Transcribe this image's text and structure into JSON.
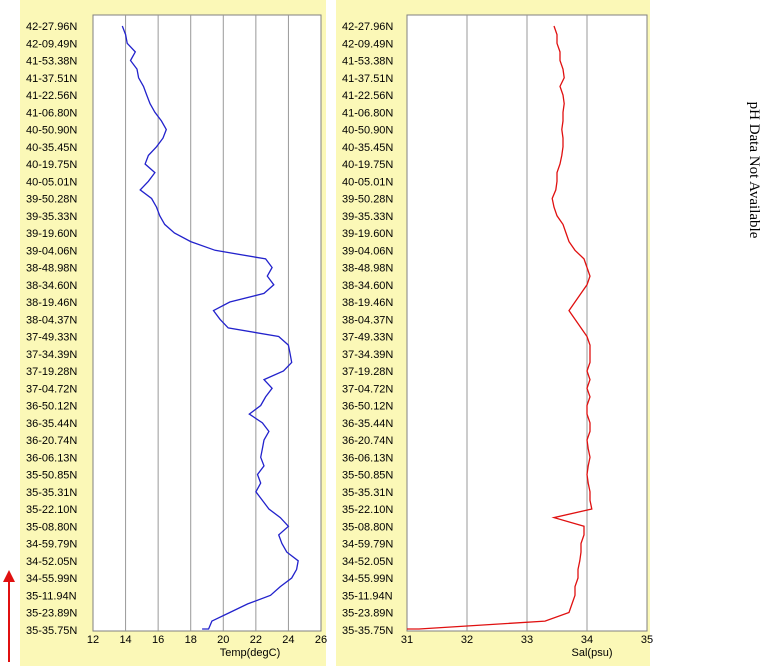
{
  "note": "pH Data Not Available",
  "colors": {
    "panel_bg": "#FBF8B7",
    "plot_bg": "#FFFFFF",
    "temp_line": "#2222CC",
    "sal_line": "#E01010",
    "grid": "#999999",
    "arrow": "#E01010"
  },
  "chart_data": [
    {
      "type": "line",
      "title": "",
      "xlabel": "Temp(degC)",
      "ylabel": "",
      "xlim": [
        12,
        26
      ],
      "xticks": [
        12,
        14,
        16,
        18,
        20,
        22,
        24,
        26
      ],
      "grid": true,
      "latitude_labels": [
        "42-27.96N",
        "42-09.49N",
        "41-53.38N",
        "41-37.51N",
        "41-22.56N",
        "41-06.80N",
        "40-50.90N",
        "40-35.45N",
        "40-19.75N",
        "40-05.01N",
        "39-50.28N",
        "39-35.33N",
        "39-19.60N",
        "39-04.06N",
        "38-48.98N",
        "38-34.60N",
        "38-19.46N",
        "38-04.37N",
        "37-49.33N",
        "37-34.39N",
        "37-19.28N",
        "37-04.72N",
        "36-50.12N",
        "36-35.44N",
        "36-20.74N",
        "36-06.13N",
        "35-50.85N",
        "35-35.31N",
        "35-22.10N",
        "35-08.80N",
        "34-59.79N",
        "34-52.05N",
        "34-55.99N",
        "35-11.94N",
        "35-23.89N",
        "35-35.75N"
      ],
      "series": [
        {
          "y": [
            0,
            0.5,
            1,
            1.5,
            2,
            2.5,
            3,
            3.5,
            4,
            4.5,
            5,
            5.5,
            6,
            6.5,
            7,
            7.5,
            8,
            8.5,
            9,
            9.5,
            10,
            10.5,
            11,
            11.5,
            12,
            12.5,
            13,
            13.5,
            14,
            14.5,
            15,
            15.5,
            16,
            16.5,
            17,
            17.5,
            18,
            18.5,
            19,
            19.5,
            20,
            20.5,
            21,
            21.5,
            22,
            22.5,
            23,
            23.5,
            24,
            24.5,
            25,
            25.5,
            26,
            26.5,
            27,
            27.5,
            28,
            28.5,
            29,
            29.5,
            30,
            30.5,
            31,
            31.5,
            32,
            32.5,
            33,
            33.5,
            34,
            34.5,
            35,
            35.5
          ],
          "x": [
            13.8,
            14.0,
            14.1,
            14.6,
            14.3,
            14.7,
            14.8,
            15.1,
            15.3,
            15.5,
            15.8,
            16.2,
            16.5,
            16.3,
            15.9,
            15.4,
            15.2,
            15.8,
            15.4,
            14.9,
            15.6,
            15.9,
            16.1,
            16.4,
            17.0,
            18.0,
            19.5,
            22.6,
            23.0,
            22.7,
            23.1,
            22.5,
            20.4,
            19.4,
            19.8,
            20.3,
            23.4,
            24.0,
            24.1,
            24.2,
            23.7,
            22.5,
            23.0,
            22.6,
            22.3,
            21.6,
            22.4,
            22.8,
            22.5,
            22.4,
            22.3,
            22.5,
            22.1,
            22.3,
            22.0,
            22.4,
            22.8,
            23.5,
            24.0,
            23.4,
            23.6,
            23.9,
            24.6,
            24.5,
            24.2,
            23.5,
            22.9,
            21.5,
            20.4,
            19.3,
            19.1,
            18.7
          ]
        }
      ]
    },
    {
      "type": "line",
      "title": "",
      "xlabel": "Sal(psu)",
      "ylabel": "",
      "xlim": [
        31,
        35
      ],
      "xticks": [
        31,
        32,
        33,
        34,
        35
      ],
      "grid": true,
      "latitude_labels": [
        "42-27.96N",
        "42-09.49N",
        "41-53.38N",
        "41-37.51N",
        "41-22.56N",
        "41-06.80N",
        "40-50.90N",
        "40-35.45N",
        "40-19.75N",
        "40-05.01N",
        "39-50.28N",
        "39-35.33N",
        "39-19.60N",
        "39-04.06N",
        "38-48.98N",
        "38-34.60N",
        "38-19.46N",
        "38-04.37N",
        "37-49.33N",
        "37-34.39N",
        "37-19.28N",
        "37-04.72N",
        "36-50.12N",
        "36-35.44N",
        "36-20.74N",
        "36-06.13N",
        "35-50.85N",
        "35-35.31N",
        "35-22.10N",
        "35-08.80N",
        "34-59.79N",
        "34-52.05N",
        "34-55.99N",
        "35-11.94N",
        "35-23.89N",
        "35-35.75N"
      ],
      "series": [
        {
          "y": [
            0,
            0.5,
            1,
            1.5,
            2,
            2.5,
            3,
            3.5,
            4,
            4.5,
            5,
            5.5,
            6,
            6.5,
            7,
            7.5,
            8,
            8.5,
            9,
            9.5,
            10,
            10.5,
            11,
            11.5,
            12,
            12.5,
            13,
            13.5,
            14,
            14.5,
            15,
            15.5,
            16,
            16.5,
            17,
            17.5,
            18,
            18.5,
            19,
            19.5,
            20,
            20.5,
            21,
            21.5,
            22,
            22.5,
            23,
            23.5,
            24,
            24.5,
            25,
            25.5,
            26,
            26.5,
            27,
            27.5,
            28,
            28.5,
            29,
            29.5,
            30,
            30.5,
            31,
            31.5,
            32,
            32.5,
            33,
            33.5,
            34,
            34.5,
            35,
            35.5
          ],
          "x": [
            33.45,
            33.5,
            33.5,
            33.55,
            33.55,
            33.6,
            33.62,
            33.55,
            33.6,
            33.62,
            33.6,
            33.6,
            33.58,
            33.6,
            33.6,
            33.58,
            33.55,
            33.5,
            33.5,
            33.48,
            33.42,
            33.45,
            33.5,
            33.6,
            33.65,
            33.7,
            33.8,
            33.95,
            34.0,
            34.05,
            34.0,
            33.9,
            33.8,
            33.7,
            33.8,
            33.9,
            34.0,
            34.05,
            34.05,
            34.05,
            34.0,
            34.05,
            34.0,
            34.05,
            34.0,
            34.0,
            34.05,
            34.05,
            34.0,
            34.02,
            34.05,
            34.02,
            34.0,
            34.02,
            34.05,
            34.05,
            34.08,
            33.45,
            33.95,
            33.95,
            33.9,
            33.9,
            33.88,
            33.85,
            33.85,
            33.8,
            33.8,
            33.75,
            33.7,
            33.3,
            31.2,
            31.0
          ]
        }
      ]
    }
  ]
}
